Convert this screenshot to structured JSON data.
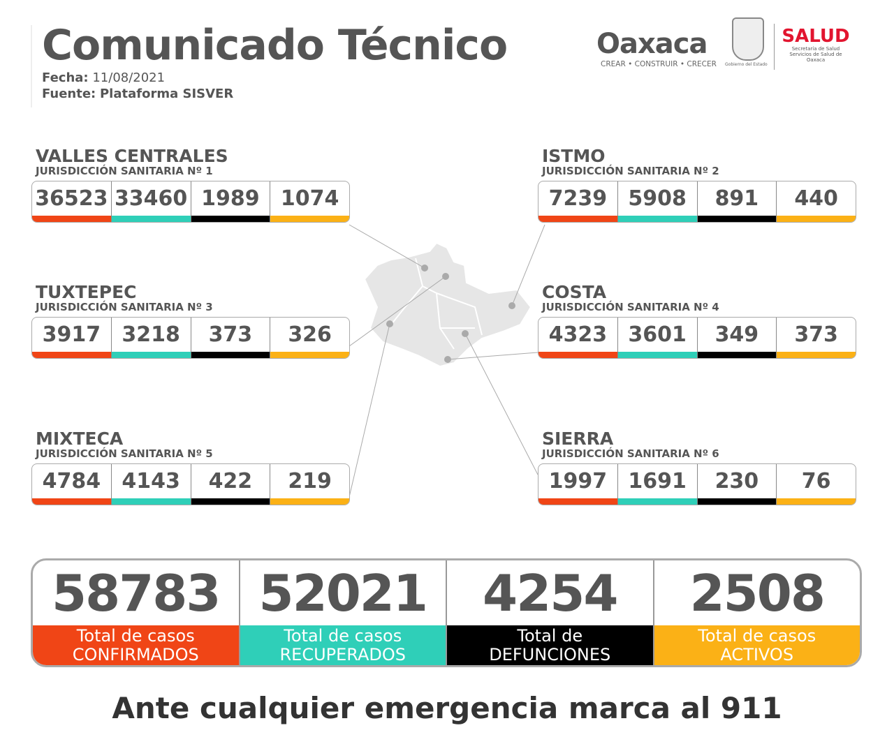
{
  "header": {
    "title": "Comunicado Técnico",
    "fecha_label": "Fecha:",
    "fecha": "11/08/2021",
    "fuente_label": "Fuente:",
    "fuente": "Plataforma SISVER"
  },
  "logos": {
    "oaxaca": "Oaxaca",
    "oaxaca_tagline": "CREAR • CONSTRUIR • CRECER",
    "gobierno": "Gobierno del Estado",
    "salud": "SALUD",
    "salud_sub1": "Secretaría de Salud",
    "salud_sub2": "Servicios de Salud de Oaxaca"
  },
  "colors": {
    "confirmados": "#f04516",
    "recuperados": "#2fcfb8",
    "defunciones": "#000000",
    "activos": "#fbb116"
  },
  "regions": [
    {
      "name": "VALLES CENTRALES",
      "sub": "JURISDICCIÓN SANITARIA Nº 1",
      "values": [
        "36523",
        "33460",
        "1989",
        "1074"
      ]
    },
    {
      "name": "ISTMO",
      "sub": "JURISDICCIÓN SANITARIA Nº 2",
      "values": [
        "7239",
        "5908",
        "891",
        "440"
      ]
    },
    {
      "name": "TUXTEPEC",
      "sub": "JURISDICCIÓN SANITARIA Nº 3",
      "values": [
        "3917",
        "3218",
        "373",
        "326"
      ]
    },
    {
      "name": "COSTA",
      "sub": "JURISDICCIÓN SANITARIA Nº 4",
      "values": [
        "4323",
        "3601",
        "349",
        "373"
      ]
    },
    {
      "name": "MIXTECA",
      "sub": "JURISDICCIÓN SANITARIA Nº 5",
      "values": [
        "4784",
        "4143",
        "422",
        "219"
      ]
    },
    {
      "name": "SIERRA",
      "sub": "JURISDICCIÓN SANITARIA Nº 6",
      "values": [
        "1997",
        "1691",
        "230",
        "76"
      ]
    }
  ],
  "totals": [
    {
      "value": "58783",
      "line1": "Total de casos",
      "line2": "CONFIRMADOS"
    },
    {
      "value": "52021",
      "line1": "Total de casos",
      "line2": "RECUPERADOS"
    },
    {
      "value": "4254",
      "line1": "Total de",
      "line2": "DEFUNCIONES"
    },
    {
      "value": "2508",
      "line1": "Total de casos",
      "line2": "ACTIVOS"
    }
  ],
  "footer": "Ante cualquier emergencia marca al 911"
}
